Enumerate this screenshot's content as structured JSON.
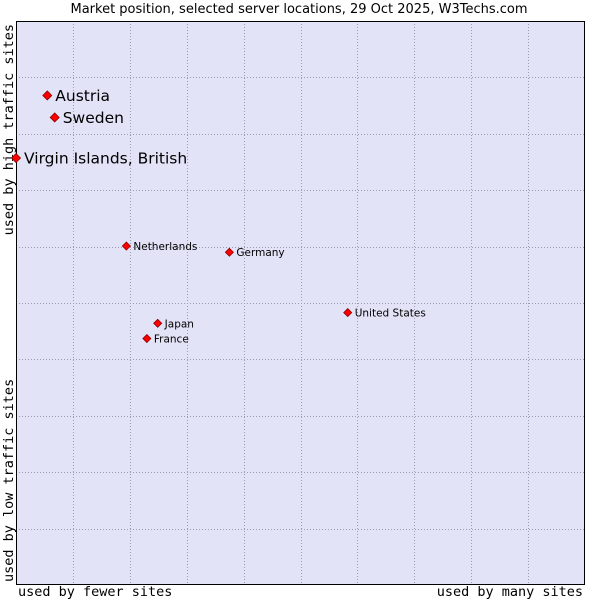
{
  "chart_data": {
    "type": "scatter",
    "title": "Market position, selected server locations, 29 Oct 2025, W3Techs.com",
    "xlabel_left": "used by fewer sites",
    "xlabel_right": "used by many sites",
    "ylabel_bottom": "used by low traffic sites",
    "ylabel_top": "used by high traffic sites",
    "xlim": [
      0,
      100
    ],
    "ylim": [
      0,
      100
    ],
    "grid": true,
    "colors": {
      "plot_background": "#e3e3f8",
      "grid": "#9a9ab0",
      "marker": "#ff0000",
      "marker_edge": "#880000",
      "frame": "#000000"
    },
    "points": [
      {
        "label": "Austria",
        "x": 5.5,
        "y": 86.8,
        "emphasis": true
      },
      {
        "label": "Sweden",
        "x": 6.8,
        "y": 82.9,
        "emphasis": true
      },
      {
        "label": "Virgin Islands, British",
        "x": 0.0,
        "y": 75.7,
        "emphasis": true
      },
      {
        "label": "Netherlands",
        "x": 19.4,
        "y": 60.1,
        "emphasis": false
      },
      {
        "label": "Germany",
        "x": 37.5,
        "y": 59.0,
        "emphasis": false
      },
      {
        "label": "United States",
        "x": 58.3,
        "y": 48.3,
        "emphasis": false
      },
      {
        "label": "Japan",
        "x": 24.9,
        "y": 46.4,
        "emphasis": false
      },
      {
        "label": "France",
        "x": 23.0,
        "y": 43.7,
        "emphasis": false
      }
    ]
  }
}
